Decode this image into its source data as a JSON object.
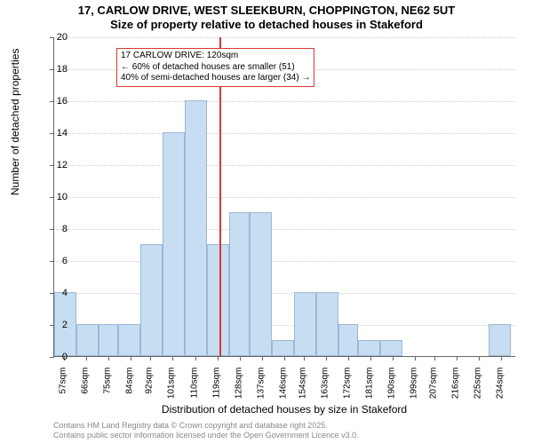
{
  "chart": {
    "type": "histogram",
    "title_line1": "17, CARLOW DRIVE, WEST SLEEKBURN, CHOPPINGTON, NE62 5UT",
    "title_line2": "Size of property relative to detached houses in Stakeford",
    "title_fontsize": 13,
    "ylabel": "Number of detached properties",
    "xlabel": "Distribution of detached houses by size in Stakeford",
    "label_fontsize": 12,
    "background_color": "#ffffff",
    "bar_fill": "#c7ddf2",
    "bar_border": "#9bb8d6",
    "grid_color": "#cccccc",
    "axis_color": "#666666",
    "ref_line_color": "#d93636",
    "ref_line_x": 120,
    "annotation": {
      "line1": "17 CARLOW DRIVE: 120sqm",
      "line2": "← 60% of detached houses are smaller (51)",
      "line3": "40% of semi-detached houses are larger (34) →",
      "border_color": "#d93636",
      "fontsize": 10
    },
    "ylim": [
      0,
      20
    ],
    "yticks": [
      0,
      2,
      4,
      6,
      8,
      10,
      12,
      14,
      16,
      18,
      20
    ],
    "xlim": [
      53,
      240
    ],
    "xticks": [
      57,
      66,
      75,
      84,
      92,
      101,
      110,
      119,
      128,
      137,
      146,
      154,
      163,
      172,
      181,
      190,
      199,
      207,
      216,
      225,
      234
    ],
    "xtick_suffix": "sqm",
    "tick_fontsize": 11,
    "bars": [
      {
        "x0": 53,
        "x1": 62,
        "y": 4
      },
      {
        "x0": 62,
        "x1": 71,
        "y": 2
      },
      {
        "x0": 71,
        "x1": 79,
        "y": 2
      },
      {
        "x0": 79,
        "x1": 88,
        "y": 2
      },
      {
        "x0": 88,
        "x1": 97,
        "y": 7
      },
      {
        "x0": 97,
        "x1": 106,
        "y": 14
      },
      {
        "x0": 106,
        "x1": 115,
        "y": 16
      },
      {
        "x0": 115,
        "x1": 124,
        "y": 7
      },
      {
        "x0": 124,
        "x1": 132,
        "y": 9
      },
      {
        "x0": 132,
        "x1": 141,
        "y": 9
      },
      {
        "x0": 141,
        "x1": 150,
        "y": 1
      },
      {
        "x0": 150,
        "x1": 159,
        "y": 4
      },
      {
        "x0": 159,
        "x1": 168,
        "y": 4
      },
      {
        "x0": 168,
        "x1": 176,
        "y": 2
      },
      {
        "x0": 176,
        "x1": 185,
        "y": 1
      },
      {
        "x0": 185,
        "x1": 194,
        "y": 1
      },
      {
        "x0": 194,
        "x1": 203,
        "y": 0
      },
      {
        "x0": 203,
        "x1": 212,
        "y": 0
      },
      {
        "x0": 212,
        "x1": 221,
        "y": 0
      },
      {
        "x0": 221,
        "x1": 229,
        "y": 0
      },
      {
        "x0": 229,
        "x1": 238,
        "y": 2
      }
    ],
    "footer_line1": "Contains HM Land Registry data © Crown copyright and database right 2025.",
    "footer_line2": "Contains public sector information licensed under the Open Government Licence v3.0.",
    "footer_color": "#888888",
    "footer_fontsize": 9
  }
}
